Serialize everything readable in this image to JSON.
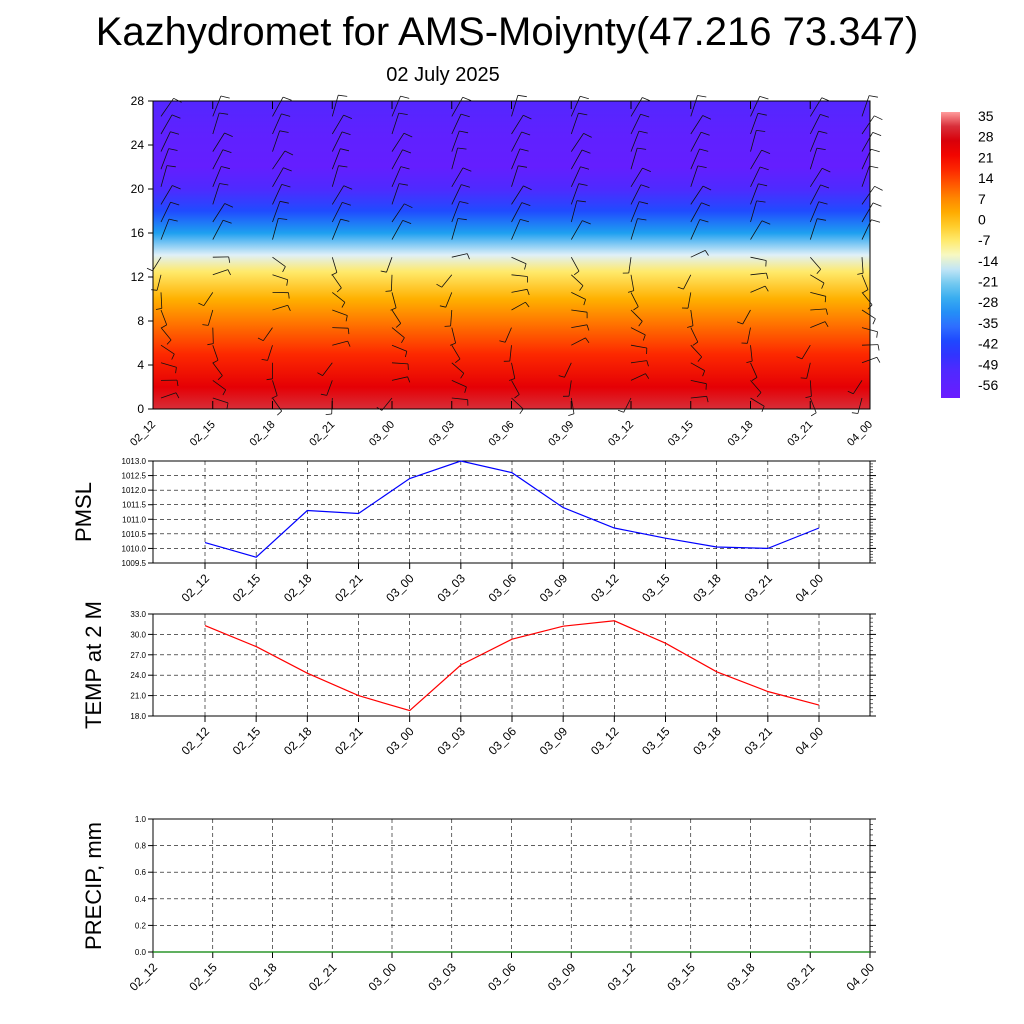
{
  "title": "Kazhydromet for AMS-Moiynty(47.216 73.347)",
  "subtitle": "02 July 2025",
  "chart_data": [
    {
      "type": "heatmap",
      "name": "vertical-profile",
      "x_ticks": [
        "02_12",
        "02_15",
        "02_18",
        "02_21",
        "03_00",
        "03_03",
        "03_06",
        "03_09",
        "03_12",
        "03_15",
        "03_18",
        "03_21",
        "04_00"
      ],
      "y_ticks": [
        "0",
        "4",
        "8",
        "12",
        "16",
        "20",
        "24",
        "28"
      ],
      "ylim": [
        0,
        28
      ],
      "colorbar_labels": [
        "35",
        "28",
        "21",
        "14",
        "7",
        "0",
        "-7",
        "-14",
        "-21",
        "-28",
        "-35",
        "-42",
        "-49",
        "-56"
      ],
      "colorbar_range": [
        -60,
        38
      ],
      "profile_temperature": [
        {
          "height": 0,
          "value": 33
        },
        {
          "height": 2,
          "value": 26
        },
        {
          "height": 5,
          "value": 18
        },
        {
          "height": 8,
          "value": 10
        },
        {
          "height": 10,
          "value": 3
        },
        {
          "height": 12.5,
          "value": -6
        },
        {
          "height": 14,
          "value": -14
        },
        {
          "height": 16,
          "value": -28
        },
        {
          "height": 18,
          "value": -40
        },
        {
          "height": 20,
          "value": -50
        },
        {
          "height": 22,
          "value": -58
        },
        {
          "height": 25,
          "value": -56
        },
        {
          "height": 28,
          "value": -52
        }
      ],
      "grid": false
    },
    {
      "type": "line",
      "name": "pmsl",
      "ylabel": "PMSL",
      "categories": [
        "02_12",
        "02_15",
        "02_18",
        "02_21",
        "03_00",
        "03_03",
        "03_06",
        "03_09",
        "03_12",
        "03_15",
        "03_18",
        "03_21",
        "04_00"
      ],
      "series": [
        {
          "values": [
            1010.2,
            1009.7,
            1011.3,
            1011.2,
            1012.4,
            1013.0,
            1012.6,
            1011.4,
            1010.7,
            1010.35,
            1010.05,
            1010.0,
            1010.7
          ]
        }
      ],
      "y_ticks": [
        "1009.5",
        "1010.0",
        "1010.5",
        "1011.0",
        "1011.5",
        "1012.0",
        "1012.5",
        "1013.0"
      ],
      "ylim": [
        1009.5,
        1013.0
      ],
      "color": "#0000ff",
      "grid": true
    },
    {
      "type": "line",
      "name": "temp2m",
      "ylabel": "TEMP at 2 M",
      "categories": [
        "02_12",
        "02_15",
        "02_18",
        "02_21",
        "03_00",
        "03_03",
        "03_06",
        "03_09",
        "03_12",
        "03_15",
        "03_18",
        "03_21",
        "04_00"
      ],
      "series": [
        {
          "values": [
            31.3,
            28.2,
            24.3,
            21.0,
            18.8,
            25.5,
            29.3,
            31.2,
            32.0,
            28.7,
            24.5,
            21.6,
            19.6
          ]
        }
      ],
      "y_ticks": [
        "18.0",
        "21.0",
        "24.0",
        "27.0",
        "30.0",
        "33.0"
      ],
      "ylim": [
        18.0,
        33.0
      ],
      "color": "#ff0000",
      "grid": true
    },
    {
      "type": "line",
      "name": "precip",
      "ylabel": "PRECIP, mm",
      "categories": [
        "02_12",
        "02_15",
        "02_18",
        "02_21",
        "03_00",
        "03_03",
        "03_06",
        "03_09",
        "03_12",
        "03_15",
        "03_18",
        "03_21",
        "04_00"
      ],
      "series": [
        {
          "values": [
            0,
            0,
            0,
            0,
            0,
            0,
            0,
            0,
            0,
            0,
            0,
            0,
            0
          ]
        }
      ],
      "y_ticks": [
        "0.0",
        "0.2",
        "0.4",
        "0.6",
        "0.8",
        "1.0"
      ],
      "ylim": [
        0.0,
        1.0
      ],
      "color": "#008000",
      "grid": true
    }
  ]
}
